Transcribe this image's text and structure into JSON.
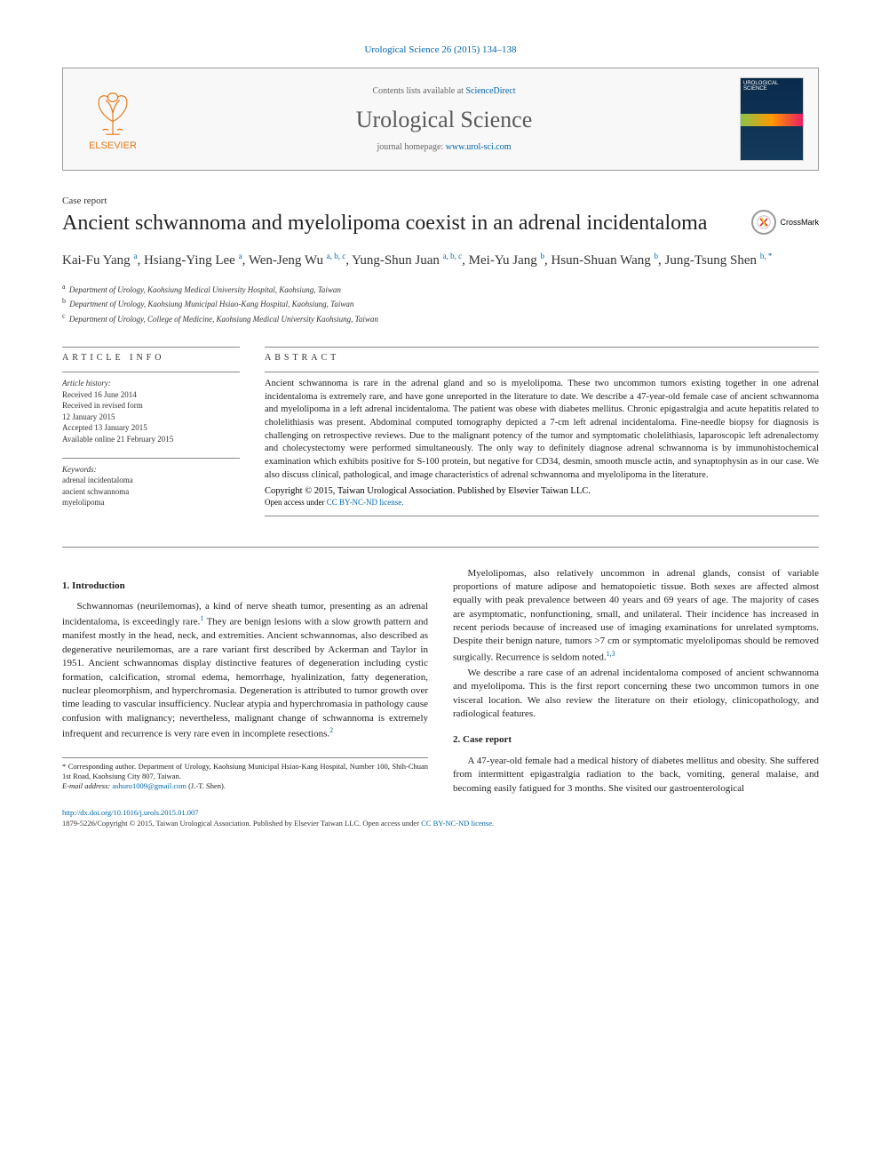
{
  "citation": {
    "text": "Urological Science 26 (2015) 134–138",
    "link_color": "#0066aa"
  },
  "header": {
    "elsevier_label": "ELSEVIER",
    "contents_prefix": "Contents lists available at ",
    "contents_link": "ScienceDirect",
    "journal_name": "Urological Science",
    "homepage_prefix": "journal homepage: ",
    "homepage_link": "www.urol-sci.com",
    "cover_title": "UROLOGICAL SCIENCE"
  },
  "crossmark_label": "CrossMark",
  "article": {
    "type": "Case report",
    "title": "Ancient schwannoma and myelolipoma coexist in an adrenal incidentaloma",
    "authors_html": "Kai-Fu Yang|a|, Hsiang-Ying Lee|a|, Wen-Jeng Wu|a, b, c|, Yung-Shun Juan|a, b, c|, Mei-Yu Jang|b|, Hsun-Shuan Wang|b|, Jung-Tsung Shen|b, *|",
    "authors": [
      {
        "name": "Kai-Fu Yang",
        "sup": "a"
      },
      {
        "name": "Hsiang-Ying Lee",
        "sup": "a"
      },
      {
        "name": "Wen-Jeng Wu",
        "sup": "a, b, c"
      },
      {
        "name": "Yung-Shun Juan",
        "sup": "a, b, c"
      },
      {
        "name": "Mei-Yu Jang",
        "sup": "b"
      },
      {
        "name": "Hsun-Shuan Wang",
        "sup": "b"
      },
      {
        "name": "Jung-Tsung Shen",
        "sup": "b, *"
      }
    ],
    "affiliations": [
      {
        "sup": "a",
        "text": "Department of Urology, Kaohsiung Medical University Hospital, Kaohsiung, Taiwan"
      },
      {
        "sup": "b",
        "text": "Department of Urology, Kaohsiung Municipal Hsiao-Kang Hospital, Kaohsiung, Taiwan"
      },
      {
        "sup": "c",
        "text": "Department of Urology, College of Medicine, Kaohsiung Medical University Kaohsiung, Taiwan"
      }
    ]
  },
  "info": {
    "label": "ARTICLE INFO",
    "history_label": "Article history:",
    "history": [
      "Received 16 June 2014",
      "Received in revised form",
      "12 January 2015",
      "Accepted 13 January 2015",
      "Available online 21 February 2015"
    ],
    "keywords_label": "Keywords:",
    "keywords": [
      "adrenal incidentaloma",
      "ancient schwannoma",
      "myelolipoma"
    ]
  },
  "abstract": {
    "label": "ABSTRACT",
    "text": "Ancient schwannoma is rare in the adrenal gland and so is myelolipoma. These two uncommon tumors existing together in one adrenal incidentaloma is extremely rare, and have gone unreported in the literature to date. We describe a 47-year-old female case of ancient schwannoma and myelolipoma in a left adrenal incidentaloma. The patient was obese with diabetes mellitus. Chronic epigastralgia and acute hepatitis related to cholelithiasis was present. Abdominal computed tomography depicted a 7-cm left adrenal incidentaloma. Fine-needle biopsy for diagnosis is challenging on retrospective reviews. Due to the malignant potency of the tumor and symptomatic cholelithiasis, laparoscopic left adrenalectomy and cholecystectomy were performed simultaneously. The only way to definitely diagnose adrenal schwannoma is by immunohistochemical examination which exhibits positive for S-100 protein, but negative for CD34, desmin, smooth muscle actin, and synaptophysin as in our case. We also discuss clinical, pathological, and image characteristics of adrenal schwannoma and myelolipoma in the literature.",
    "copyright": "Copyright © 2015, Taiwan Urological Association. Published by Elsevier Taiwan LLC.",
    "open_access_prefix": "Open access under ",
    "open_access_link": "CC BY-NC-ND license."
  },
  "body": {
    "section1_heading": "1. Introduction",
    "section1_p1": "Schwannomas (neurilemomas), a kind of nerve sheath tumor, presenting as an adrenal incidentaloma, is exceedingly rare.",
    "section1_p1_ref": "1",
    "section1_p1_cont": " They are benign lesions with a slow growth pattern and manifest mostly in the head, neck, and extremities. Ancient schwannomas, also described as degenerative neurilemomas, are a rare variant first described by Ackerman and Taylor in 1951. Ancient schwannomas display distinctive features of degeneration including cystic formation, calcification, stromal edema, hemorrhage, hyalinization, fatty degeneration, nuclear pleomorphism, and hyperchromasia. Degeneration is attributed to tumor growth over time leading to vascular insufficiency. Nuclear atypia and hyperchromasia in pathology cause confusion with malignancy; nevertheless, malignant change of schwannoma is extremely infrequent and recurrence is very rare even in incomplete resections.",
    "section1_p1_ref2": "2",
    "section1_p2": "Myelolipomas, also relatively uncommon in adrenal glands, consist of variable proportions of mature adipose and hematopoietic tissue. Both sexes are affected almost equally with peak prevalence between 40 years and 69 years of age. The majority of cases are asymptomatic, nonfunctioning, small, and unilateral. Their incidence has increased in recent periods because of increased use of imaging examinations for unrelated symptoms. Despite their benign nature, tumors >7 cm or symptomatic myelolipomas should be removed surgically. Recurrence is seldom noted.",
    "section1_p2_ref": "1,3",
    "section1_p3": "We describe a rare case of an adrenal incidentaloma composed of ancient schwannoma and myelolipoma. This is the first report concerning these two uncommon tumors in one visceral location. We also review the literature on their etiology, clinicopathology, and radiological features.",
    "section2_heading": "2. Case report",
    "section2_p1": "A 47-year-old female had a medical history of diabetes mellitus and obesity. She suffered from intermittent epigastralgia radiation to the back, vomiting, general malaise, and becoming easily fatigued for 3 months. She visited our gastroenterological"
  },
  "corr": {
    "star": "*",
    "text": "Corresponding author. Department of Urology, Kaohsiung Municipal Hsiao-Kang Hospital, Number 100, Shih-Chuan 1st Road, Kaohsiung City 807, Taiwan.",
    "email_label": "E-mail address:",
    "email": "ashuro1009@gmail.com",
    "email_suffix": "(J.-T. Shen)."
  },
  "footer": {
    "doi": "http://dx.doi.org/10.1016/j.urols.2015.01.007",
    "issn_line_prefix": "1879-5226/Copyright © 2015, Taiwan Urological Association. Published by Elsevier Taiwan LLC. ",
    "open_access_prefix": "Open access under ",
    "open_access_link": "CC BY-NC-ND license."
  },
  "colors": {
    "link": "#0066aa",
    "elsevier_orange": "#e67817",
    "rule": "#888888",
    "text": "#222222"
  }
}
